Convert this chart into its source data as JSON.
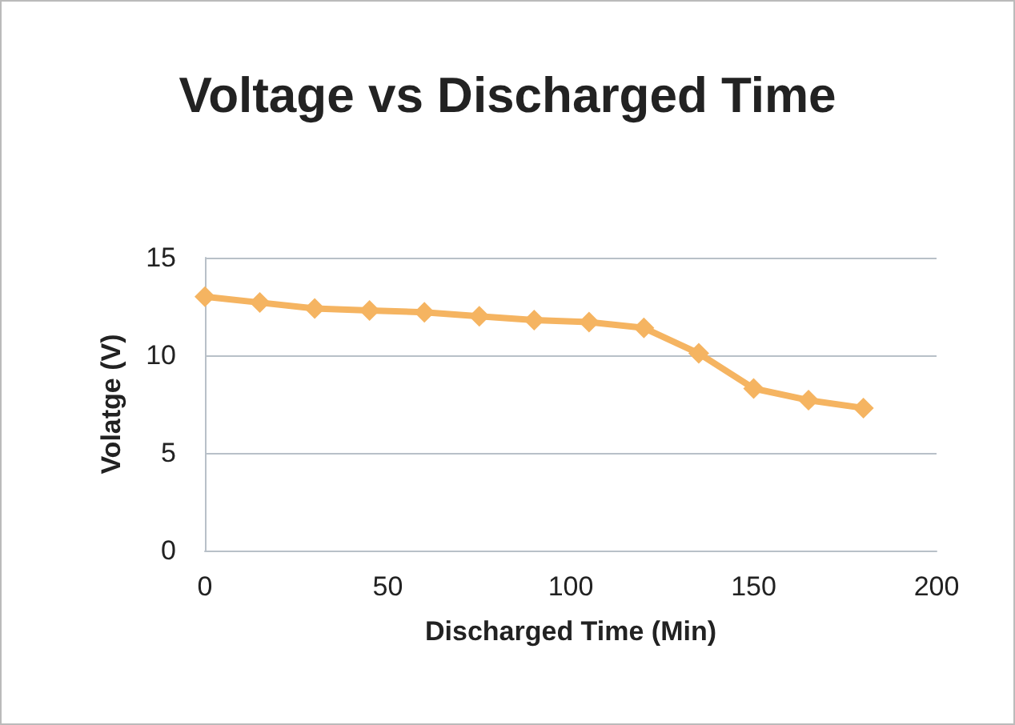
{
  "chart_data": {
    "type": "line",
    "title": "Voltage vs Discharged Time",
    "xlabel": "Discharged Time (Min)",
    "ylabel": "Volatge (V)",
    "x": [
      0,
      15,
      30,
      45,
      60,
      75,
      90,
      105,
      120,
      135,
      150,
      165,
      180
    ],
    "series": [
      {
        "color": "#f5b461",
        "values": [
          13.0,
          12.7,
          12.4,
          12.3,
          12.2,
          12.0,
          11.8,
          11.7,
          11.4,
          10.1,
          8.3,
          7.7,
          7.3
        ]
      }
    ],
    "xlim": [
      0,
      200
    ],
    "xticks": [
      0,
      50,
      100,
      150,
      200
    ],
    "ylim": [
      0,
      15
    ],
    "yticks": [
      0,
      5,
      10,
      15
    ],
    "grid": "y",
    "marker": "diamond",
    "line_style": "solid"
  }
}
